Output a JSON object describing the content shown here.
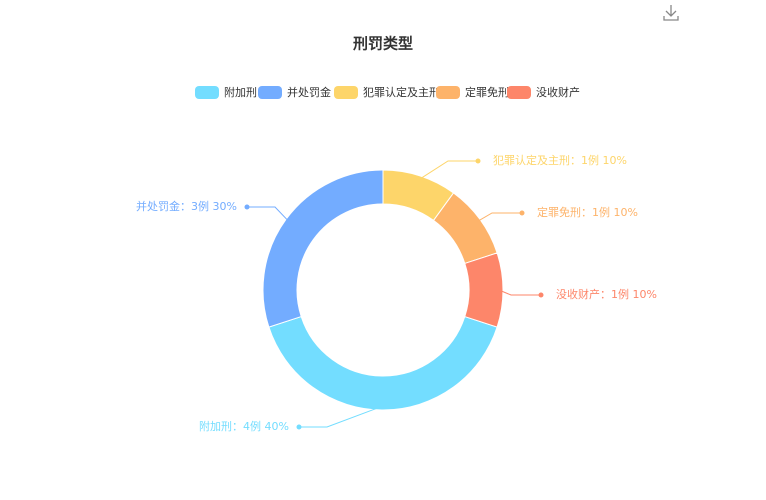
{
  "chart_data": {
    "type": "pie",
    "title": "刑罚类型",
    "categories": [
      "附加刑",
      "并处罚金",
      "犯罪认定及主刑",
      "定罪免刑",
      "没收财产"
    ],
    "values": [
      4,
      3,
      1,
      1,
      1
    ],
    "value_labels": [
      "附加刑：4例  40%",
      "并处罚金：3例  30%",
      "犯罪认定及主刑：1例  10%",
      "定罪免刑：1例  10%",
      "没收财产：1例  10%"
    ],
    "colors": [
      "#73ddff",
      "#73acff",
      "#fdd56a",
      "#fdb36a",
      "#fd866a"
    ]
  }
}
